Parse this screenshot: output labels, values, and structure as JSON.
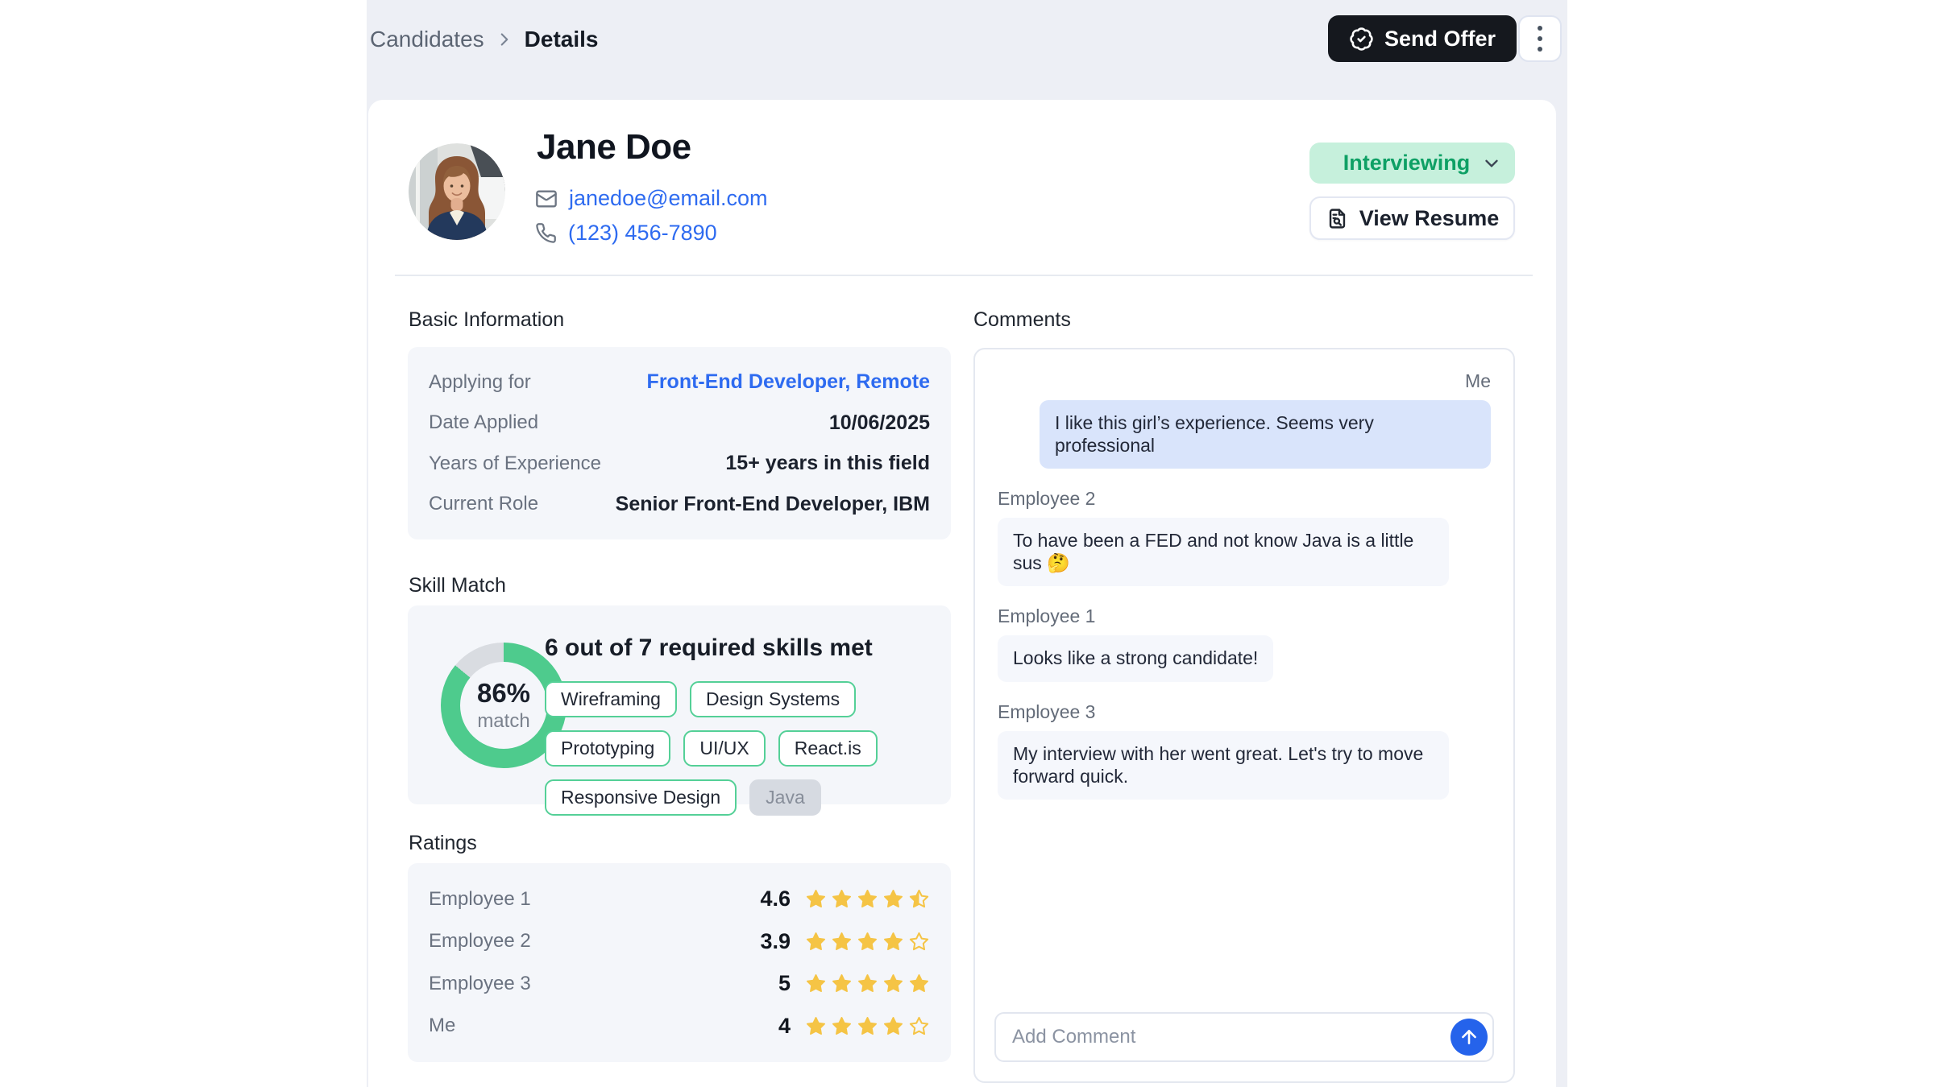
{
  "breadcrumb": {
    "parent": "Candidates",
    "current": "Details"
  },
  "header": {
    "send_offer_label": "Send Offer"
  },
  "profile": {
    "name": "Jane Doe",
    "email": "janedoe@email.com",
    "phone": "(123) 456-7890",
    "status": "Interviewing",
    "view_resume_label": "View Resume"
  },
  "basic_info": {
    "title": "Basic Information",
    "rows": [
      {
        "label": "Applying for",
        "value": "Front-End Developer, Remote",
        "link": true
      },
      {
        "label": "Date Applied",
        "value": "10/06/2025",
        "link": false
      },
      {
        "label": "Years of Experience",
        "value": "15+ years in this field",
        "link": false
      },
      {
        "label": "Current Role",
        "value": "Senior Front-End Developer, IBM",
        "link": false
      }
    ]
  },
  "skill_match": {
    "title": "Skill Match",
    "percent": 86,
    "percent_label": "86%",
    "match_label": "match",
    "headline": "6 out of 7 required skills met",
    "chips": [
      {
        "label": "Wireframing",
        "met": true
      },
      {
        "label": "Design Systems",
        "met": true
      },
      {
        "label": "Prototyping",
        "met": true
      },
      {
        "label": "UI/UX",
        "met": true
      },
      {
        "label": "React.is",
        "met": true
      },
      {
        "label": "Responsive Design",
        "met": true
      },
      {
        "label": "Java",
        "met": false
      }
    ]
  },
  "ratings": {
    "title": "Ratings",
    "rows": [
      {
        "name": "Employee 1",
        "value": 4.6,
        "display": "4.6"
      },
      {
        "name": "Employee 2",
        "value": 3.9,
        "display": "3.9"
      },
      {
        "name": "Employee 3",
        "value": 5,
        "display": "5"
      },
      {
        "name": "Me",
        "value": 4,
        "display": "4"
      }
    ]
  },
  "comments": {
    "title": "Comments",
    "messages": [
      {
        "author": "Me",
        "align": "right",
        "text": "I like this girl’s experience. Seems very professional"
      },
      {
        "author": "Employee 2",
        "align": "left",
        "text": "To have been a FED and not know Java is a little sus 🤔"
      },
      {
        "author": "Employee 1",
        "align": "left",
        "text": "Looks like a strong candidate!"
      },
      {
        "author": "Employee 3",
        "align": "left",
        "text": "My interview with her went great. Let's try to move forward quick."
      }
    ],
    "input_placeholder": "Add Comment"
  },
  "colors": {
    "accent_blue": "#2563eb",
    "link_blue": "#2e6bf0",
    "status_green_text": "#0ea065",
    "status_green_bg": "#c6f0dc",
    "donut_green": "#4ecb8d",
    "donut_track": "#d9dce1",
    "star_yellow": "#F5C445",
    "dark_button": "#15181e",
    "me_bubble": "#d9e4fb"
  }
}
